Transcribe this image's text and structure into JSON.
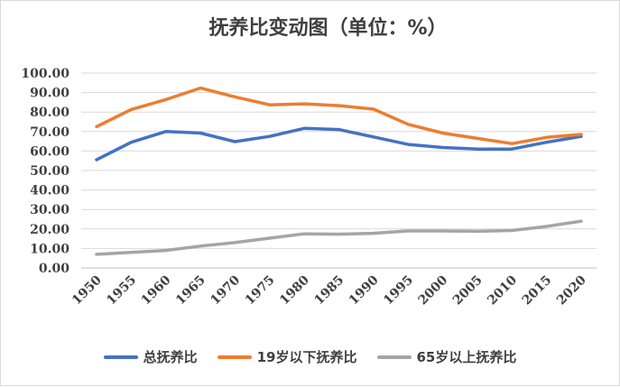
{
  "chart_data": {
    "type": "line",
    "title": "抚养比变动图（单位：%）",
    "xlabel": "",
    "ylabel": "",
    "ylim": [
      0,
      100
    ],
    "y_ticks": [
      "100.00",
      "90.00",
      "80.00",
      "70.00",
      "60.00",
      "50.00",
      "40.00",
      "30.00",
      "20.00",
      "10.00",
      "0.00"
    ],
    "y_tick_values": [
      100,
      90,
      80,
      70,
      60,
      50,
      40,
      30,
      20,
      10,
      0
    ],
    "x": [
      "1950",
      "1955",
      "1960",
      "1965",
      "1970",
      "1975",
      "1980",
      "1985",
      "1990",
      "1995",
      "2000",
      "2005",
      "2010",
      "2015",
      "2020"
    ],
    "grid": true,
    "legend_position": "bottom",
    "series": [
      {
        "name": "总抚养比",
        "color": "#4472C4",
        "values": [
          55.5,
          64.5,
          70.0,
          69.2,
          64.8,
          67.5,
          71.6,
          71.0,
          67.2,
          63.4,
          61.8,
          61.0,
          61.0,
          64.5,
          67.5
        ]
      },
      {
        "name": "19岁以下抚养比",
        "color": "#ED7D31",
        "values": [
          72.5,
          81.3,
          86.4,
          92.3,
          87.8,
          83.7,
          84.2,
          83.3,
          81.5,
          73.7,
          69.2,
          66.5,
          63.8,
          67.0,
          68.5
        ]
      },
      {
        "name": "65岁以上抚养比",
        "color": "#A5A5A5",
        "values": [
          7.0,
          8.0,
          9.0,
          11.2,
          13.0,
          15.3,
          17.5,
          17.3,
          17.8,
          19.0,
          19.0,
          18.8,
          19.2,
          21.3,
          24.0
        ]
      }
    ]
  }
}
